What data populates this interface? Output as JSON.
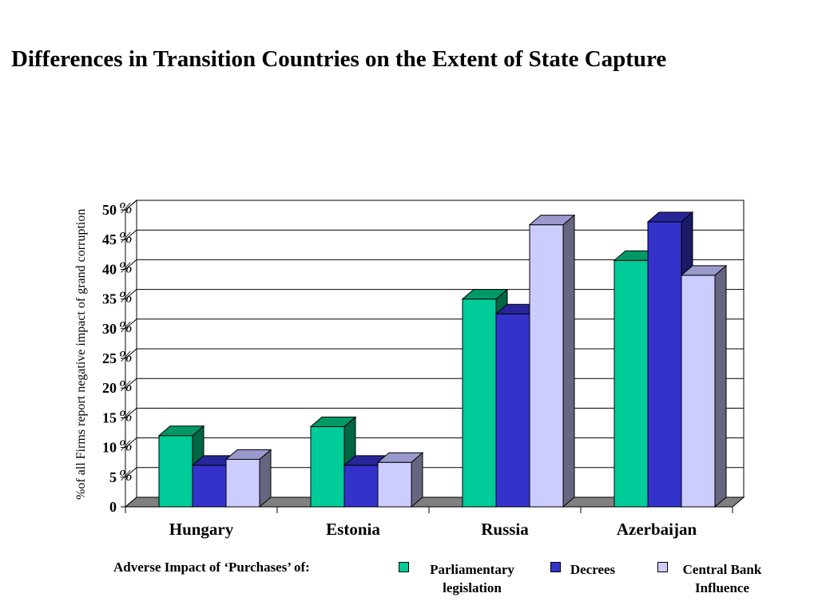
{
  "title": "Differences in Transition Countries on the Extent of State Capture",
  "legend_caption": "Adverse Impact of ‘Purchases’ of:",
  "colors": {
    "series": [
      "#00cc99",
      "#3333cc",
      "#ccccff"
    ],
    "series_side": [
      "#006644",
      "#1a1a66",
      "#666680"
    ],
    "series_top": [
      "#009966",
      "#26269a",
      "#9999cc"
    ],
    "floor": "#808080",
    "grid": "#000000"
  },
  "chart_data": {
    "type": "bar",
    "title": "Differences in Transition Countries on the Extent of State Capture",
    "ylabel": "%of all Firms report negative impact of grand corruption",
    "xlabel": "",
    "categories": [
      "Hungary",
      "Estonia",
      "Russia",
      "Azerbaijan"
    ],
    "series": [
      {
        "name": "Parliamentary legislation",
        "values": [
          12,
          13.5,
          35,
          41.5
        ]
      },
      {
        "name": "Decrees",
        "values": [
          7,
          7,
          32.5,
          48
        ]
      },
      {
        "name": "Central Bank Influence",
        "values": [
          8,
          7.5,
          47.5,
          39
        ]
      }
    ],
    "ylim": [
      0,
      50
    ],
    "yticks": [
      {
        "num": "0",
        "pct": ""
      },
      {
        "num": "5",
        "pct": "%"
      },
      {
        "num": "10",
        "pct": "%"
      },
      {
        "num": "15",
        "pct": "%"
      },
      {
        "num": "20",
        "pct": "%"
      },
      {
        "num": "25",
        "pct": "%"
      },
      {
        "num": "30",
        "pct": "%"
      },
      {
        "num": "35",
        "pct": "%"
      },
      {
        "num": "40",
        "pct": "%"
      },
      {
        "num": "45",
        "pct": "%"
      },
      {
        "num": "50",
        "pct": "%"
      }
    ],
    "grid": true,
    "legend_position": "bottom"
  },
  "legend": [
    {
      "line1": "Parliamentary",
      "line2": "legislation"
    },
    {
      "line1": "Decrees",
      "line2": ""
    },
    {
      "line1": "Central Bank",
      "line2": "Influence"
    }
  ]
}
